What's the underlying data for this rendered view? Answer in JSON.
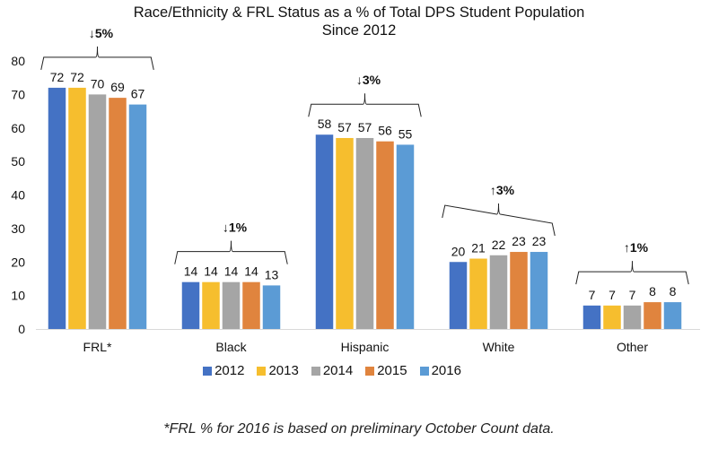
{
  "chart_data": {
    "type": "bar",
    "title": "Race/Ethnicity & FRL Status as a % of Total DPS Student Population",
    "subtitle": "Since 2012",
    "xlabel": "",
    "ylabel": "",
    "ylim": [
      0,
      80
    ],
    "yticks": [
      0,
      10,
      20,
      30,
      40,
      50,
      60,
      70,
      80
    ],
    "grid": false,
    "legend_position": "bottom",
    "categories": [
      "FRL*",
      "Black",
      "Hispanic",
      "White",
      "Other"
    ],
    "series": [
      {
        "name": "2012",
        "color": "#4472C4",
        "values": [
          72,
          14,
          58,
          20,
          7
        ]
      },
      {
        "name": "2013",
        "color": "#F6BE2E",
        "values": [
          72,
          14,
          57,
          21,
          7
        ]
      },
      {
        "name": "2014",
        "color": "#A5A5A5",
        "values": [
          70,
          14,
          57,
          22,
          7
        ]
      },
      {
        "name": "2015",
        "color": "#E0843E",
        "values": [
          69,
          14,
          56,
          23,
          8
        ]
      },
      {
        "name": "2016",
        "color": "#5B9BD5",
        "values": [
          67,
          13,
          55,
          23,
          8
        ]
      }
    ],
    "annotations": [
      {
        "category": "FRL*",
        "text": "↓5%"
      },
      {
        "category": "Black",
        "text": "↓1%"
      },
      {
        "category": "Hispanic",
        "text": "↓3%"
      },
      {
        "category": "White",
        "text": "↑3%"
      },
      {
        "category": "Other",
        "text": "↑1%"
      }
    ],
    "footnote": "*FRL % for 2016 is based on preliminary October Count data."
  }
}
